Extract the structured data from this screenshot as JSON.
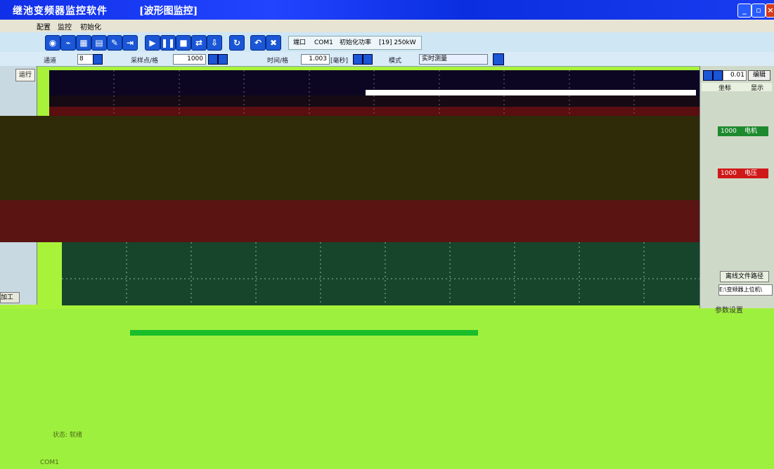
{
  "window": {
    "title": "继池变频器监控软件",
    "subtitle": "[波形图监控]"
  },
  "menu": {
    "items": [
      "配置",
      "监控",
      "初始化"
    ]
  },
  "toolbar": {
    "port_label": "端口",
    "port_value": "COM1",
    "init_power_label": "初始化功率",
    "init_power_value": "[19] 250kW"
  },
  "params": {
    "channel_label": "通道",
    "channel_value": "8",
    "sample_label": "采样点/格",
    "sample_value": "1000",
    "time_label": "时间/格",
    "time_value": "1.003",
    "time_unit": "[毫秒]",
    "mode_label": "模式",
    "mode_value": "实时测量"
  },
  "left": {
    "run_label": "运行",
    "bottom_label": "加工"
  },
  "right": {
    "scale_value": "0.01",
    "edit_label": "编辑",
    "col_header_1": "坐标",
    "col_header_2": "显示",
    "rows": [
      {
        "a": "1000",
        "b": "电机",
        "color": "#1e8a2e"
      },
      {
        "a": "1000",
        "b": "电压",
        "color": "#cf1818"
      }
    ],
    "path_button": "离线文件路径",
    "path_value": "E:\\变频器上位机\\"
  },
  "footer": {
    "param_setting": "参数设置",
    "status_a": "状态: 就绪",
    "status_b": "COM1"
  },
  "colors": {
    "titlebar": "#1030e8",
    "scope_bg": "#0d0622",
    "lower_bg": "#9ef03e"
  }
}
